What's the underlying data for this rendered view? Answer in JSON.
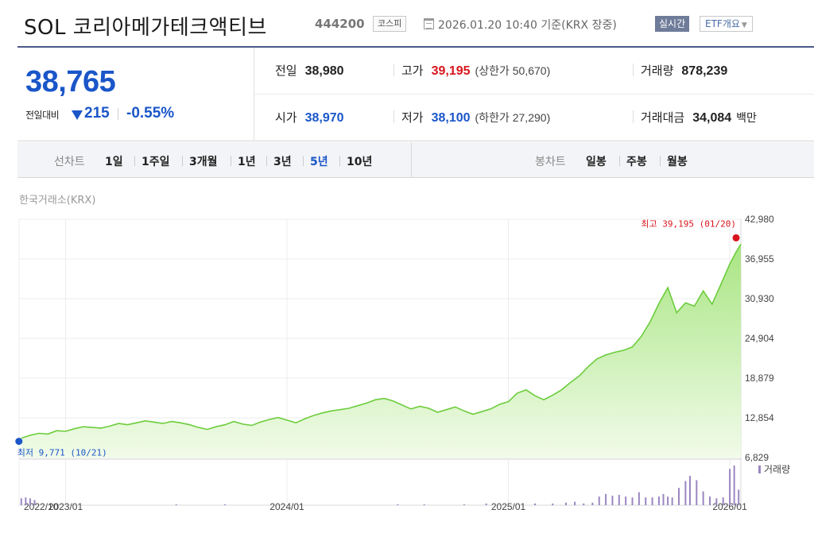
{
  "header": {
    "etf_name": "SOL 코리아메가테크액티브",
    "etf_code": "444200",
    "market": "코스피",
    "base_time": "2026.01.20 10:40 기준(KRX 장중)",
    "realtime_label": "실시간",
    "etf_info_label": "ETF개요"
  },
  "quote": {
    "price": "38,765",
    "change_label": "전일대비",
    "change": "215",
    "change_pct": "-0.55%",
    "prev_close": {
      "label": "전일",
      "value": "38,980"
    },
    "high": {
      "label": "고가",
      "value": "39,195",
      "limit_label": "상한가",
      "limit_value": "50,670"
    },
    "volume": {
      "label": "거래량",
      "value": "878,239"
    },
    "open": {
      "label": "시가",
      "value": "38,970"
    },
    "low": {
      "label": "저가",
      "value": "38,100",
      "limit_label": "하한가",
      "limit_value": "27,290"
    },
    "trade_value": {
      "label": "거래대금",
      "value": "34,084",
      "unit": "백만"
    }
  },
  "period_bar": {
    "line_chart_label": "선차트",
    "line_periods": [
      "1일",
      "1주일",
      "3개월",
      "1년",
      "3년",
      "5년",
      "10년"
    ],
    "active_period": "5년",
    "candle_chart_label": "봉차트",
    "candle_periods": [
      "일봉",
      "주봉",
      "월봉"
    ]
  },
  "colors": {
    "line": "#6ccd3c",
    "area_top": "#a9e583",
    "area_bottom": "#f1fbe9",
    "volume": "#9b86c2",
    "up": "#d8141c",
    "down": "#1a56c8"
  },
  "chart_data": {
    "type": "area",
    "source_label": "한국거래소(KRX)",
    "y_ticks": [
      42980,
      36955,
      30930,
      24904,
      18879,
      12854,
      6829
    ],
    "y_tick_labels": [
      "42,980",
      "36,955",
      "30,930",
      "24,904",
      "18,879",
      "12,854",
      "6,829"
    ],
    "x_tick_labels": [
      "2022/10",
      "2023/01",
      "2024/01",
      "2025/01",
      "2026/01"
    ],
    "x_ticks": [
      2022.79,
      2023.0,
      2024.0,
      2025.0,
      2026.0
    ],
    "x_range": [
      2022.79,
      2026.05
    ],
    "y_range": [
      6829,
      42980
    ],
    "max_annotation": "최고 39,195 (01/20)",
    "min_annotation": "최저 9,771 (10/21)",
    "volume_legend": "거래량",
    "series": [
      {
        "values_x": [
          2022.8,
          2022.84,
          2022.88,
          2022.92,
          2022.96,
          2023.0,
          2023.04,
          2023.08,
          2023.12,
          2023.16,
          2023.2,
          2023.24,
          2023.28,
          2023.32,
          2023.36,
          2023.4,
          2023.44,
          2023.48,
          2023.52,
          2023.56,
          2023.6,
          2023.64,
          2023.68,
          2023.72,
          2023.76,
          2023.8,
          2023.84,
          2023.88,
          2023.92,
          2023.96,
          2024.0,
          2024.04,
          2024.08,
          2024.12,
          2024.16,
          2024.2,
          2024.24,
          2024.28,
          2024.32,
          2024.36,
          2024.4,
          2024.44,
          2024.48,
          2024.52,
          2024.56,
          2024.6,
          2024.64,
          2024.68,
          2024.72,
          2024.76,
          2024.8,
          2024.84,
          2024.88,
          2024.92,
          2024.96,
          2025.0,
          2025.04,
          2025.08,
          2025.12,
          2025.16,
          2025.2,
          2025.24,
          2025.28,
          2025.32,
          2025.36,
          2025.4,
          2025.44,
          2025.48,
          2025.52,
          2025.56,
          2025.6,
          2025.64,
          2025.68,
          2025.72,
          2025.76,
          2025.8,
          2025.84,
          2025.88,
          2025.92,
          2025.96,
          2026.0,
          2026.03,
          2026.05
        ],
        "values_y": [
          9771,
          10200,
          10500,
          10400,
          10900,
          10800,
          11200,
          11500,
          11400,
          11300,
          11600,
          12000,
          11800,
          12100,
          12400,
          12200,
          12000,
          12300,
          12100,
          11800,
          11400,
          11100,
          11500,
          11800,
          12300,
          11900,
          11700,
          12200,
          12600,
          12900,
          12500,
          12100,
          12700,
          13200,
          13600,
          13900,
          14100,
          14300,
          14700,
          15100,
          15600,
          15800,
          15400,
          14800,
          14200,
          14600,
          14300,
          13700,
          14100,
          14500,
          13900,
          13400,
          13800,
          14200,
          14900,
          15300,
          16600,
          17100,
          16200,
          15600,
          16300,
          17100,
          18200,
          19200,
          20600,
          21800,
          22400,
          22800,
          23100,
          23600,
          25200,
          27400,
          30200,
          32600,
          28800,
          30300,
          29800,
          32100,
          30100,
          33100,
          36200,
          38100,
          39195
        ]
      }
    ],
    "volume": {
      "values_x": [
        2022.8,
        2022.82,
        2022.84,
        2022.86,
        2023.5,
        2023.72,
        2024.5,
        2024.62,
        2024.8,
        2024.9,
        2025.12,
        2025.2,
        2025.26,
        2025.3,
        2025.34,
        2025.38,
        2025.41,
        2025.44,
        2025.47,
        2025.5,
        2025.53,
        2025.56,
        2025.59,
        2025.62,
        2025.65,
        2025.68,
        2025.7,
        2025.72,
        2025.74,
        2025.77,
        2025.8,
        2025.82,
        2025.85,
        2025.88,
        2025.91,
        2025.94,
        2025.97,
        2026.0,
        2026.02,
        2026.04
      ],
      "values_y": [
        8,
        9,
        8,
        6,
        1,
        1,
        1,
        1,
        1,
        2,
        2,
        2,
        3,
        4,
        2,
        3,
        10,
        13,
        11,
        12,
        10,
        9,
        15,
        9,
        9,
        10,
        13,
        10,
        9,
        20,
        28,
        34,
        29,
        16,
        10,
        8,
        9,
        42,
        46,
        18
      ]
    }
  }
}
